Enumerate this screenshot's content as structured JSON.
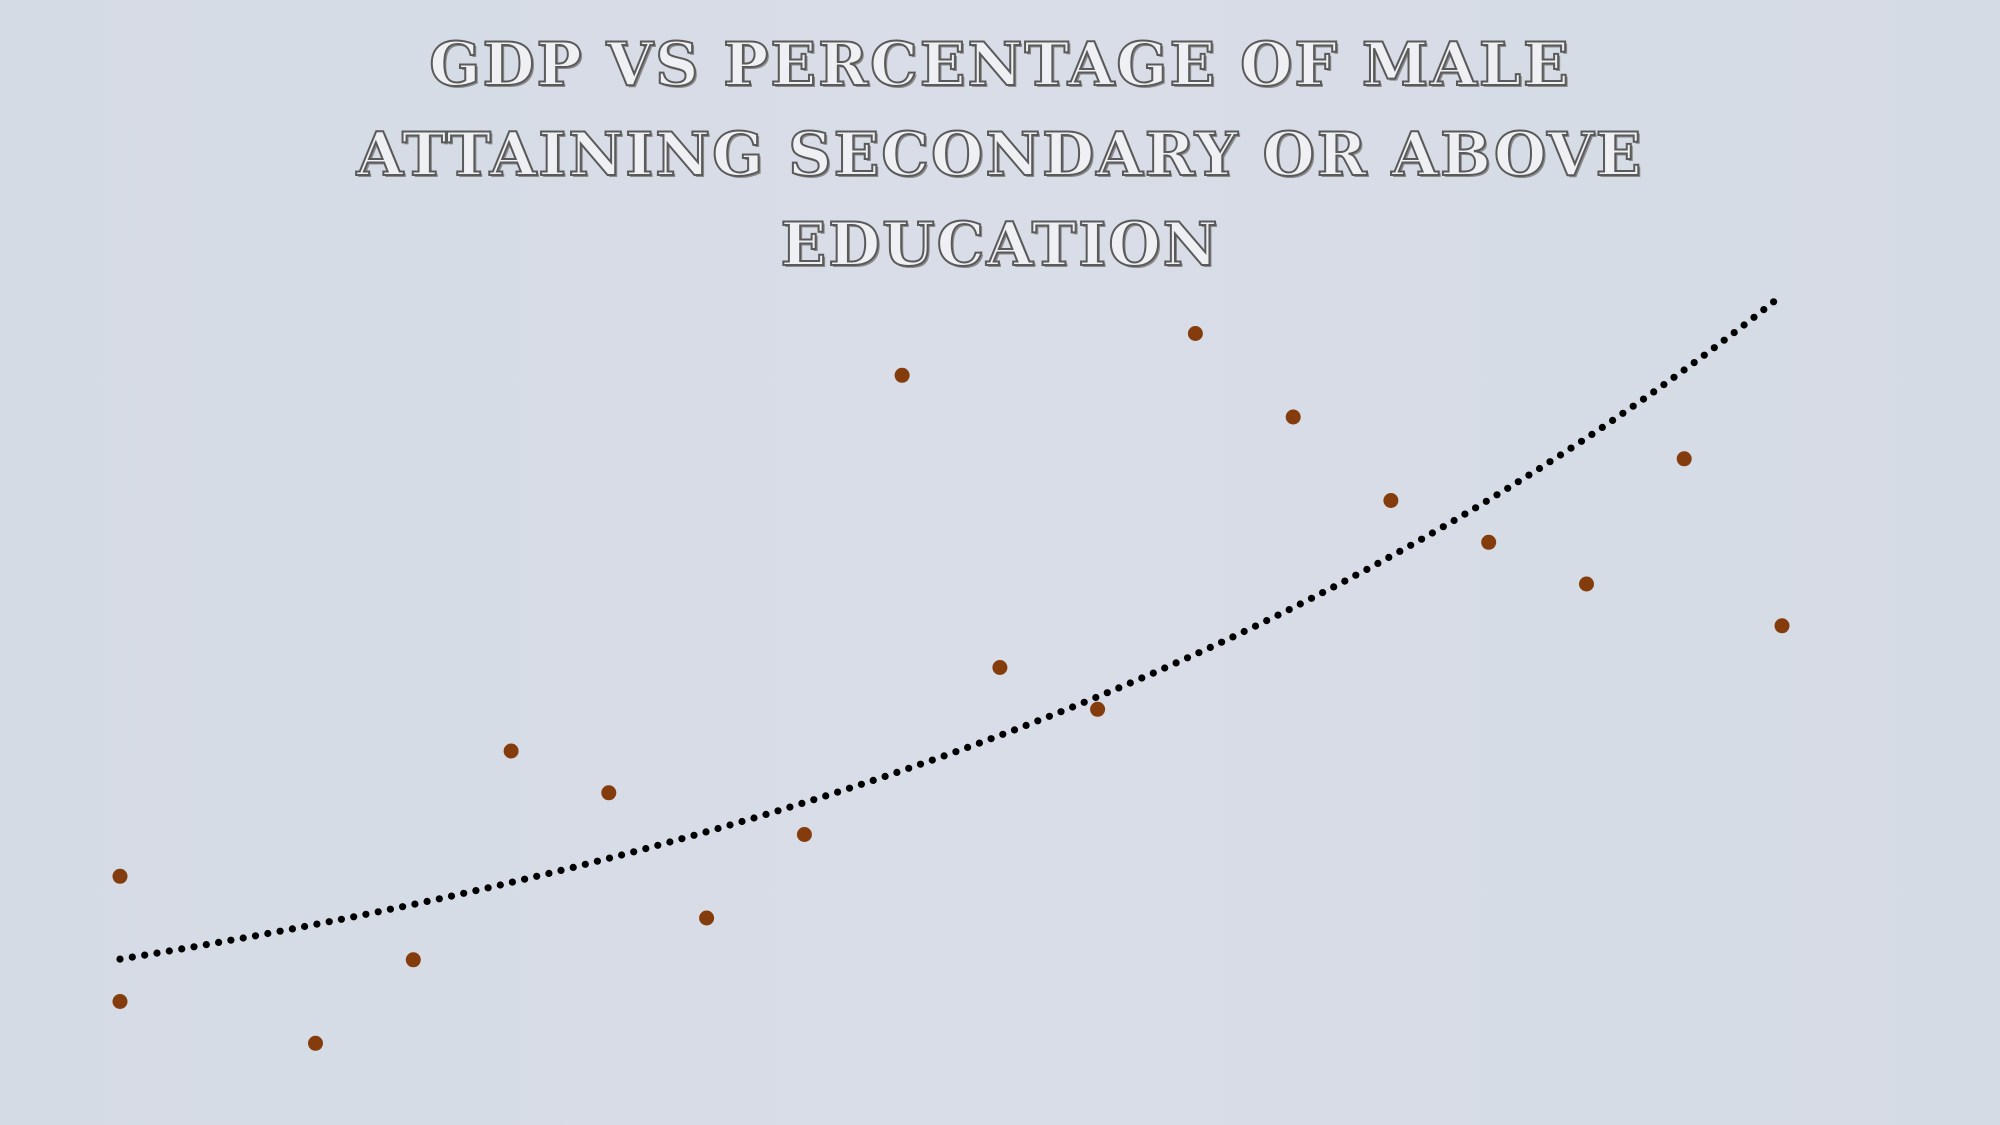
{
  "chart_data": {
    "type": "scatter",
    "title": "GDP vs Percentage of male attaining secondary or above education",
    "xlabel": "",
    "ylabel": "",
    "marker_color": "#843c0c",
    "trendline": {
      "type": "exponential",
      "style": "dotted",
      "color": "#000000"
    },
    "series": [
      {
        "points": [
          {
            "x": 1,
            "y": 3.0
          },
          {
            "x": 1,
            "y": 6.0
          },
          {
            "x": 3,
            "y": 2.0
          },
          {
            "x": 4,
            "y": 4.0
          },
          {
            "x": 5,
            "y": 9.0
          },
          {
            "x": 6,
            "y": 8.0
          },
          {
            "x": 7,
            "y": 5.0
          },
          {
            "x": 8,
            "y": 7.0
          },
          {
            "x": 9,
            "y": 18.0
          },
          {
            "x": 10,
            "y": 11.0
          },
          {
            "x": 11,
            "y": 10.0
          },
          {
            "x": 12,
            "y": 19.0
          },
          {
            "x": 13,
            "y": 17.0
          },
          {
            "x": 14,
            "y": 15.0
          },
          {
            "x": 15,
            "y": 14.0
          },
          {
            "x": 16,
            "y": 13.0
          },
          {
            "x": 17,
            "y": 16.0
          },
          {
            "x": 18,
            "y": 12.0
          }
        ]
      }
    ]
  }
}
